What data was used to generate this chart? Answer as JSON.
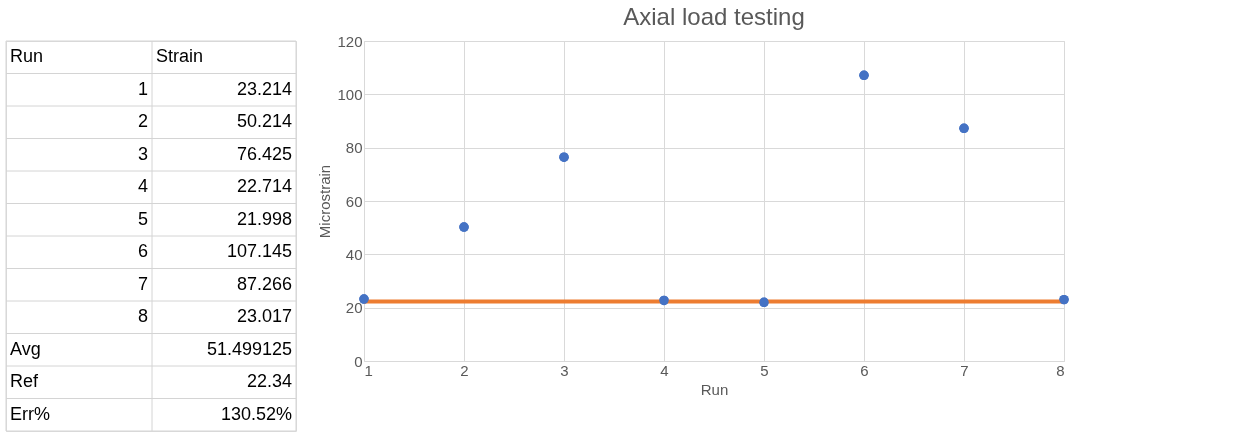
{
  "chart_data": {
    "type": "scatter",
    "title": "Axial load testing",
    "xlabel": "Run",
    "ylabel": "Microstrain",
    "x": [
      1,
      2,
      3,
      4,
      5,
      6,
      7,
      8
    ],
    "series": [
      {
        "color": "#4472c4",
        "values": [
          23.214,
          50.214,
          76.425,
          22.714,
          21.998,
          107.145,
          87.266,
          23.017
        ]
      }
    ],
    "xlim": [
      1,
      8
    ],
    "xticks": [
      1,
      2,
      3,
      4,
      5,
      6,
      7,
      8
    ],
    "ylim": [
      0,
      120
    ],
    "yticks": [
      0,
      20,
      40,
      60,
      80,
      100,
      120
    ],
    "grid": true,
    "marker": "circle",
    "ref_lines": [
      {
        "axis": "y",
        "value": 22.34,
        "color": "#ed7d31"
      }
    ],
    "annotations": [
      "Run",
      "Strain",
      "1",
      "23.214",
      "2",
      "50.214",
      "3",
      "76.425",
      "4",
      "22.714",
      "5",
      "21.998",
      "6",
      "107.145",
      "7",
      "87.266",
      "8",
      "23.017",
      "Avg",
      "51.499125",
      "Ref",
      "22.34",
      "Err%",
      "130.52%"
    ]
  }
}
